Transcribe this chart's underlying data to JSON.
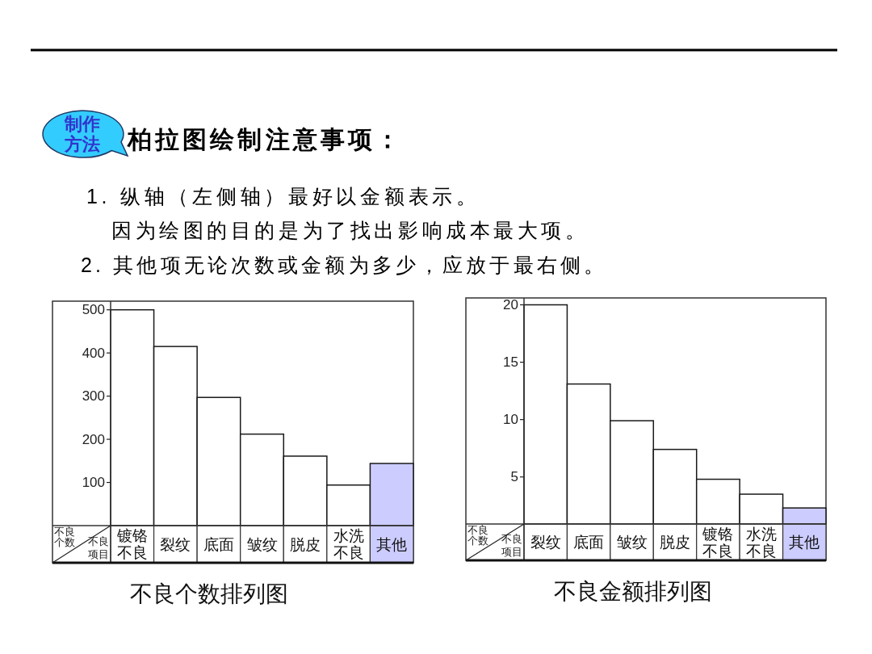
{
  "chart_data": [
    {
      "type": "other",
      "title": "柏拉图绘制注意事项：",
      "subtitle": "制作方法",
      "annotations": [
        "1. 纵轴（左侧轴）最好以金额表示。",
        "因为绘图的目的是为了找出影响成本最大项。",
        "2. 其他项无论次数或金额为多少，应放于最右侧。"
      ]
    },
    {
      "type": "bar",
      "title": "不良个数排列图",
      "xlabel": "不良项目",
      "ylabel": "不良个数",
      "categories": [
        "镀铬不良",
        "裂纹",
        "底面",
        "皱纹",
        "脱皮",
        "水洗不良",
        "其他"
      ],
      "values": [
        500,
        415,
        297,
        212,
        161,
        94,
        144
      ],
      "colors": [
        "#ffffff",
        "#ffffff",
        "#ffffff",
        "#ffffff",
        "#ffffff",
        "#ffffff",
        "#ccccff"
      ],
      "ylim": [
        0,
        520
      ],
      "yticks": [
        100,
        200,
        300,
        400,
        500
      ]
    },
    {
      "type": "bar",
      "title": "不良金额排列图",
      "xlabel": "不良项目",
      "ylabel": "不良个数",
      "categories": [
        "裂纹",
        "底面",
        "皱纹",
        "脱皮",
        "镀铬不良",
        "水洗不良",
        "其他"
      ],
      "values": [
        20,
        13.1,
        9.9,
        7.4,
        4.8,
        3.5,
        2.3
      ],
      "colors": [
        "#ffffff",
        "#ffffff",
        "#ffffff",
        "#ffffff",
        "#ffffff",
        "#ffffff",
        "#ccccff"
      ],
      "ylim": [
        0.9,
        20.6
      ],
      "yticks": [
        5,
        10,
        15,
        20
      ]
    }
  ]
}
